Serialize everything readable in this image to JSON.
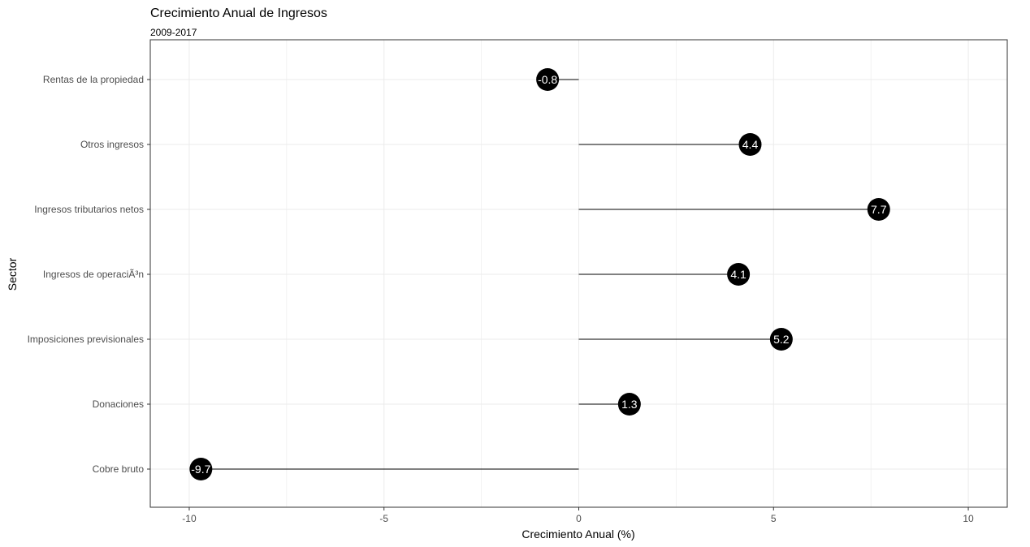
{
  "chart_data": {
    "type": "lollipop",
    "title": "Crecimiento Anual de Ingresos",
    "subtitle": "2009-2017",
    "xlabel": "Crecimiento Anual (%)",
    "ylabel": "Sector",
    "xlim": [
      -11.0,
      11.0
    ],
    "xticks": [
      -10,
      -5,
      0,
      5,
      10
    ],
    "xtick_labels": [
      "-10",
      "-5",
      "0",
      "5",
      "10"
    ],
    "grid": true,
    "categories": [
      "Rentas de la propiedad",
      "Otros ingresos",
      "Ingresos tributarios netos",
      "Ingresos de operaciÃ³n",
      "Imposiciones previsionales",
      "Donaciones",
      "Cobre bruto"
    ],
    "values": [
      -0.8,
      4.4,
      7.7,
      4.1,
      5.2,
      1.3,
      -9.7
    ],
    "value_labels": [
      "-0.8",
      "4.4",
      "7.7",
      "4.1",
      "5.2",
      "1.3",
      "-9.7"
    ],
    "colors": {
      "dot": "#000000",
      "line": "#000000",
      "label": "#ffffff",
      "grid": "#ebebeb",
      "border": "#333333"
    }
  }
}
